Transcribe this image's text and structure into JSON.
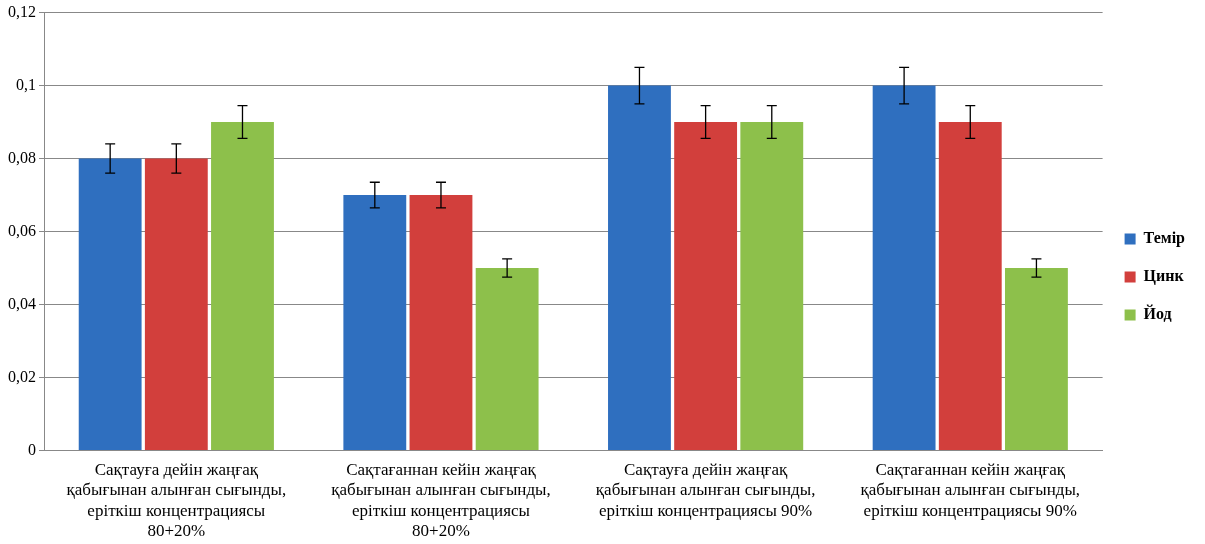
{
  "chart_data": {
    "type": "bar",
    "categories": [
      "Сақтауға дейін жаңғақ қабығынан алынған сығынды, еріткіш концентрациясы 80+20%",
      "Сақтағаннан кейін жаңғақ қабығынан алынған сығынды, еріткіш концентрациясы 80+20%",
      "Сақтауға дейін жаңғақ қабығынан алынған сығынды, еріткіш концентрациясы 90%",
      "Сақтағаннан кейін жаңғақ қабығынан алынған сығынды, еріткіш концентрациясы 90%"
    ],
    "series": [
      {
        "name": "Темір",
        "color": "#2f6fbf",
        "values": [
          0.08,
          0.07,
          0.1,
          0.1
        ],
        "errors": [
          0.004,
          0.0035,
          0.005,
          0.005
        ]
      },
      {
        "name": "Цинк",
        "color": "#d23f3c",
        "values": [
          0.08,
          0.07,
          0.09,
          0.09
        ],
        "errors": [
          0.004,
          0.0035,
          0.0045,
          0.0045
        ]
      },
      {
        "name": "Йод",
        "color": "#8dc04b",
        "values": [
          0.09,
          0.05,
          0.09,
          0.05
        ],
        "errors": [
          0.0045,
          0.0025,
          0.0045,
          0.0025
        ]
      }
    ],
    "ylim": [
      0,
      0.12
    ],
    "yticks": [
      {
        "value": 0,
        "label": "0"
      },
      {
        "value": 0.02,
        "label": "0,02"
      },
      {
        "value": 0.04,
        "label": "0,04"
      },
      {
        "value": 0.06,
        "label": "0,06"
      },
      {
        "value": 0.08,
        "label": "0,08"
      },
      {
        "value": 0.1,
        "label": "0,1"
      },
      {
        "value": 0.12,
        "label": "0,12"
      }
    ],
    "grid": "y",
    "legend": "right"
  }
}
